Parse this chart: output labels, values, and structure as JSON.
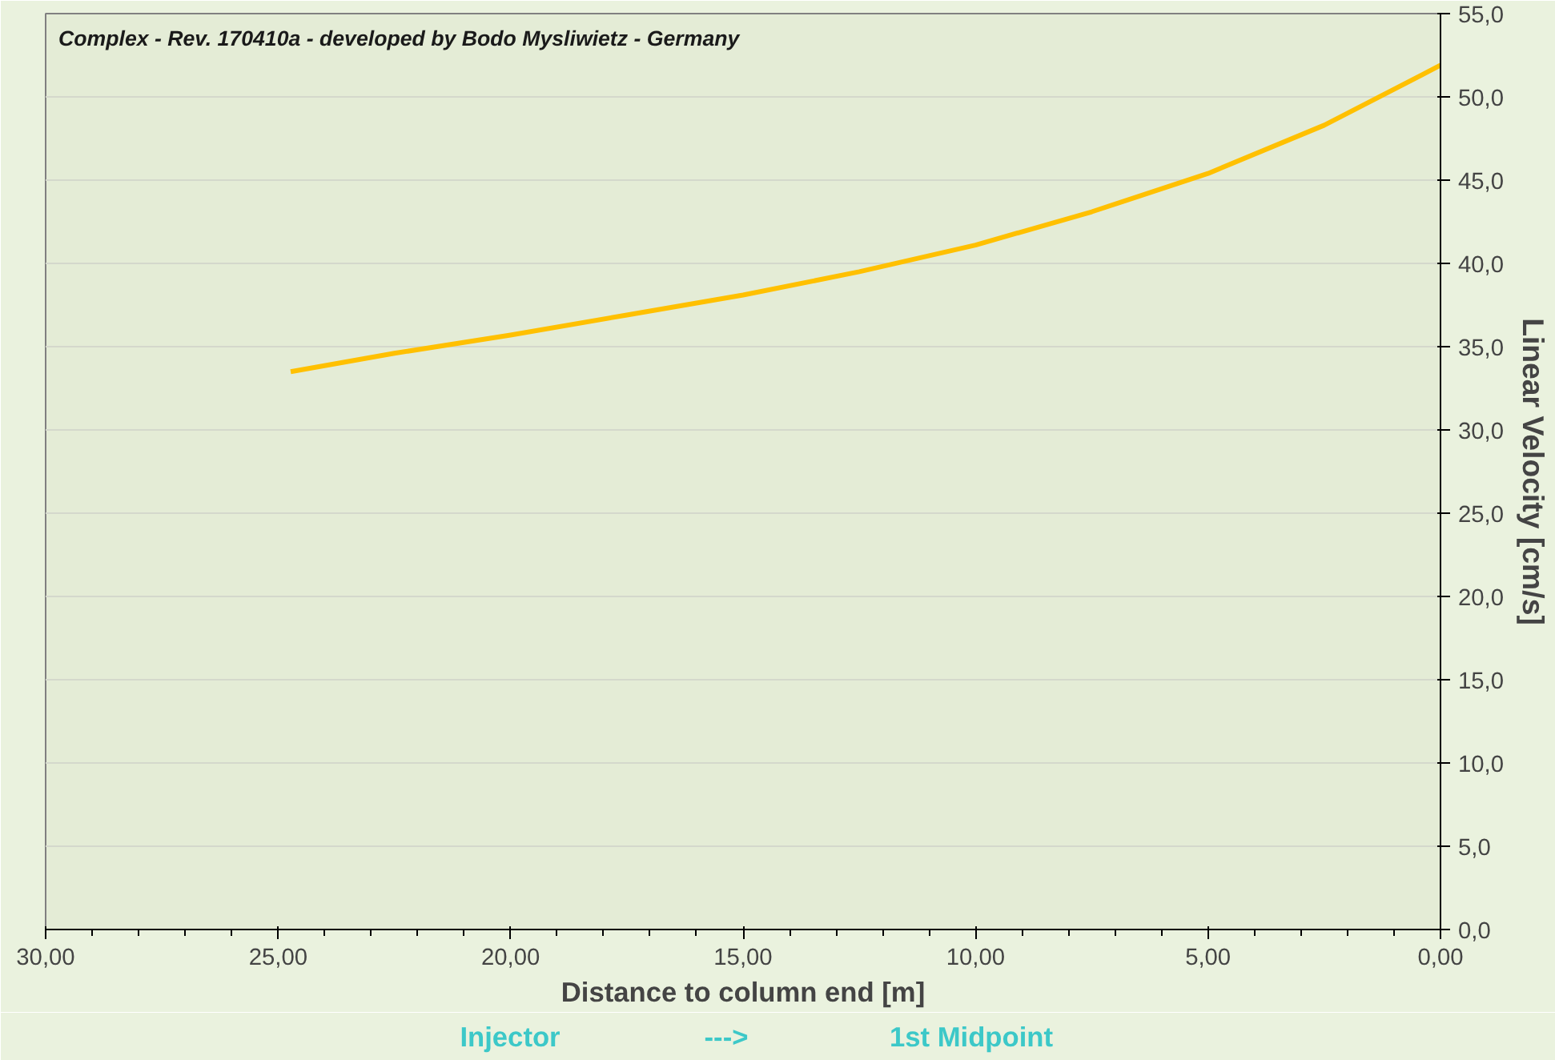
{
  "chart_data": {
    "type": "line",
    "title": "Complex - Rev. 170410a - developed by Bodo Mysliwietz - Germany",
    "xlabel": "Distance to column end [m]",
    "ylabel": "Linear Velocity [cm/s]",
    "x": [
      24.73,
      22.5,
      20,
      17.5,
      15,
      12.5,
      10,
      7.5,
      5,
      2.5,
      0
    ],
    "series": [
      {
        "color": "#ffc000",
        "values": [
          33.5,
          34.6,
          35.7,
          36.9,
          38.1,
          39.5,
          41.1,
          43.1,
          45.4,
          48.3,
          51.9
        ]
      }
    ],
    "xlim": [
      30,
      0
    ],
    "ylim": [
      0,
      55
    ],
    "xticks": [
      {
        "value": 30,
        "label": "30,00"
      },
      {
        "value": 25,
        "label": "25,00"
      },
      {
        "value": 20,
        "label": "20,00"
      },
      {
        "value": 15,
        "label": "15,00"
      },
      {
        "value": 10,
        "label": "10,00"
      },
      {
        "value": 5,
        "label": "5,00"
      },
      {
        "value": 0,
        "label": "0,00"
      }
    ],
    "yticks": [
      {
        "value": 0,
        "label": "0,0"
      },
      {
        "value": 5,
        "label": "5,0"
      },
      {
        "value": 10,
        "label": "10,0"
      },
      {
        "value": 15,
        "label": "15,0"
      },
      {
        "value": 20,
        "label": "20,0"
      },
      {
        "value": 25,
        "label": "25,0"
      },
      {
        "value": 30,
        "label": "30,0"
      },
      {
        "value": 35,
        "label": "35,0"
      },
      {
        "value": 40,
        "label": "40,0"
      },
      {
        "value": 45,
        "label": "45,0"
      },
      {
        "value": 50,
        "label": "50,0"
      },
      {
        "value": 55,
        "label": "55,0"
      }
    ],
    "grid": "y",
    "marker": "none",
    "line_style": "solid",
    "annotations": [
      "Injector",
      "--->",
      "1st Midpoint"
    ]
  }
}
